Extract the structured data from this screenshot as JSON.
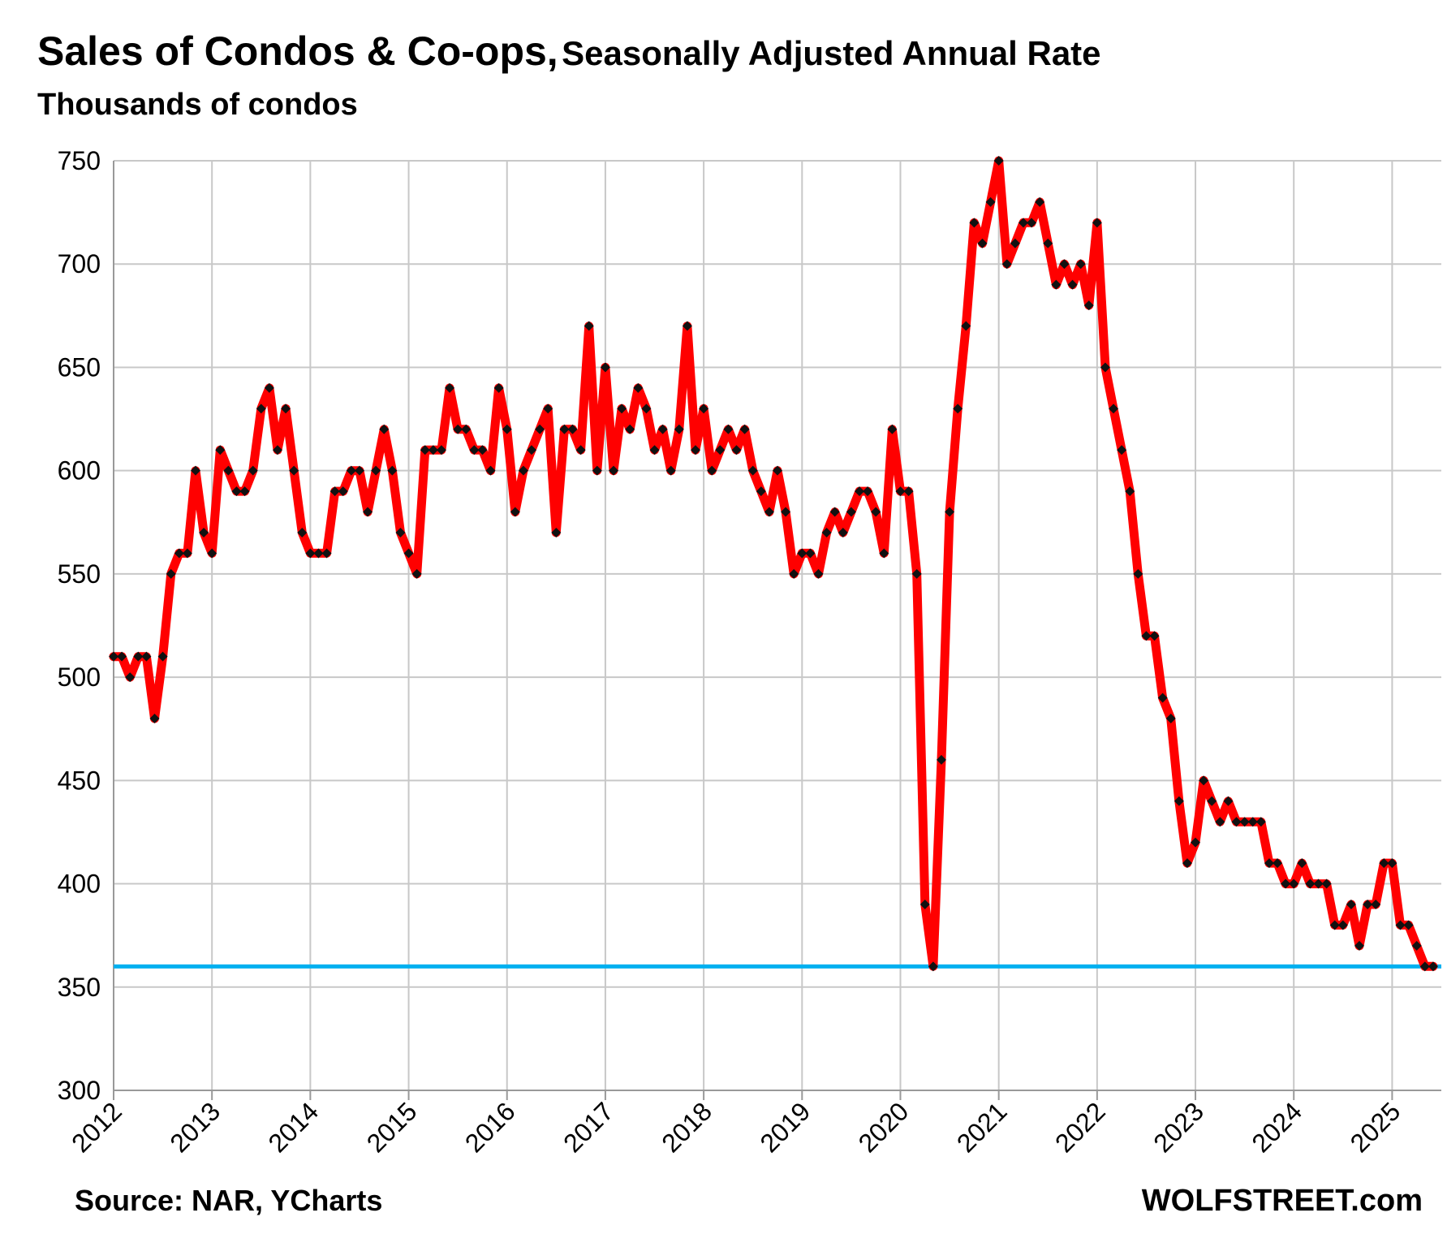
{
  "header": {
    "title_main": "Sales of Condos  & Co-ops,",
    "title_sub": "Seasonally Adjusted Annual Rate",
    "unit_label": "Thousands of condos"
  },
  "footer": {
    "source": "Source: NAR, YCharts",
    "brand": "WOLFSTREET.com"
  },
  "colors": {
    "series_line": "#ff0000",
    "marker": "#111111",
    "reference_line": "#00b0f0",
    "grid": "#c8c8c8"
  },
  "chart_data": {
    "type": "line",
    "title": "Sales of Condos  & Co-ops, Seasonally Adjusted Annual Rate",
    "ylabel": "Thousands of condos",
    "xlabel": "",
    "ylim": [
      300,
      750
    ],
    "yticks": [
      300,
      350,
      400,
      450,
      500,
      550,
      600,
      650,
      700,
      750
    ],
    "x_tick_labels": [
      "2012",
      "2013",
      "2014",
      "2015",
      "2016",
      "2017",
      "2018",
      "2019",
      "2020",
      "2021",
      "2022",
      "2023",
      "2024",
      "2025"
    ],
    "x_start": "2012-01",
    "frequency": "monthly",
    "grid": true,
    "reference_line": {
      "value": 360,
      "label": ""
    },
    "series": [
      {
        "name": "Condo & Co-op sales (SAAR)",
        "values": [
          510,
          510,
          500,
          510,
          510,
          480,
          510,
          550,
          560,
          560,
          600,
          570,
          560,
          610,
          600,
          590,
          590,
          600,
          630,
          640,
          610,
          630,
          600,
          570,
          560,
          560,
          560,
          590,
          590,
          600,
          600,
          580,
          600,
          620,
          600,
          570,
          560,
          550,
          610,
          610,
          610,
          640,
          620,
          620,
          610,
          610,
          600,
          640,
          620,
          580,
          600,
          610,
          620,
          630,
          570,
          620,
          620,
          610,
          670,
          600,
          650,
          600,
          630,
          620,
          640,
          630,
          610,
          620,
          600,
          620,
          670,
          610,
          630,
          600,
          610,
          620,
          610,
          620,
          600,
          590,
          580,
          600,
          580,
          550,
          560,
          560,
          550,
          570,
          580,
          570,
          580,
          590,
          590,
          580,
          560,
          620,
          590,
          590,
          550,
          390,
          360,
          460,
          580,
          630,
          670,
          720,
          710,
          730,
          750,
          700,
          710,
          720,
          720,
          730,
          710,
          690,
          700,
          690,
          700,
          680,
          720,
          650,
          630,
          610,
          590,
          550,
          520,
          520,
          490,
          480,
          440,
          410,
          420,
          450,
          440,
          430,
          440,
          430,
          430,
          430,
          430,
          410,
          410,
          400,
          400,
          410,
          400,
          400,
          400,
          380,
          380,
          390,
          370,
          390,
          390,
          410,
          410,
          380,
          380,
          370,
          360,
          360
        ]
      }
    ]
  }
}
